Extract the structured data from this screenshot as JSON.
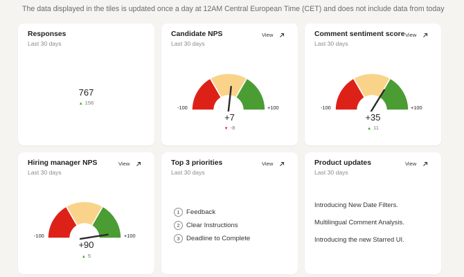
{
  "notice": "The data displayed in the tiles is updated once a day at 12AM Central European Time (CET) and does not include data from today",
  "view_label": "View",
  "tiles": {
    "responses": {
      "title": "Responses",
      "period": "Last 30 days",
      "value": "767",
      "delta": "156",
      "delta_direction": "up"
    },
    "candidate_nps": {
      "title": "Candidate NPS",
      "period": "Last 30 days",
      "value": "+7",
      "delta": "-8",
      "delta_direction": "down",
      "score": 7,
      "min_label": "-100",
      "max_label": "+100"
    },
    "comment_sentiment": {
      "title": "Comment sentiment score",
      "period": "Last 30 days",
      "value": "+35",
      "delta": "11",
      "delta_direction": "up",
      "score": 35,
      "min_label": "-100",
      "max_label": "+100"
    },
    "hiring_manager_nps": {
      "title": "Hiring manager NPS",
      "period": "Last 30 days",
      "value": "+90",
      "delta": "5",
      "delta_direction": "up",
      "score": 90,
      "min_label": "-100",
      "max_label": "+100"
    },
    "top_priorities": {
      "title": "Top 3 priorities",
      "period": "Last 30 days",
      "items": [
        {
          "num": "1",
          "label": "Feedback"
        },
        {
          "num": "2",
          "label": "Clear Instructions"
        },
        {
          "num": "3",
          "label": "Deadline to Complete"
        }
      ]
    },
    "product_updates": {
      "title": "Product updates",
      "period": "Last 30 days",
      "items": [
        "Introducing New Date Filters.",
        "Multilingual Comment Analysis.",
        "Introducing the new Starred UI."
      ]
    }
  },
  "colors": {
    "negative": "#de2118",
    "neutral": "#fad38b",
    "positive": "#4a9c33",
    "needle": "#2a2a2a"
  },
  "icons": {
    "delta_up": "▲",
    "delta_down": "▼",
    "external": "external-link-arrow"
  }
}
